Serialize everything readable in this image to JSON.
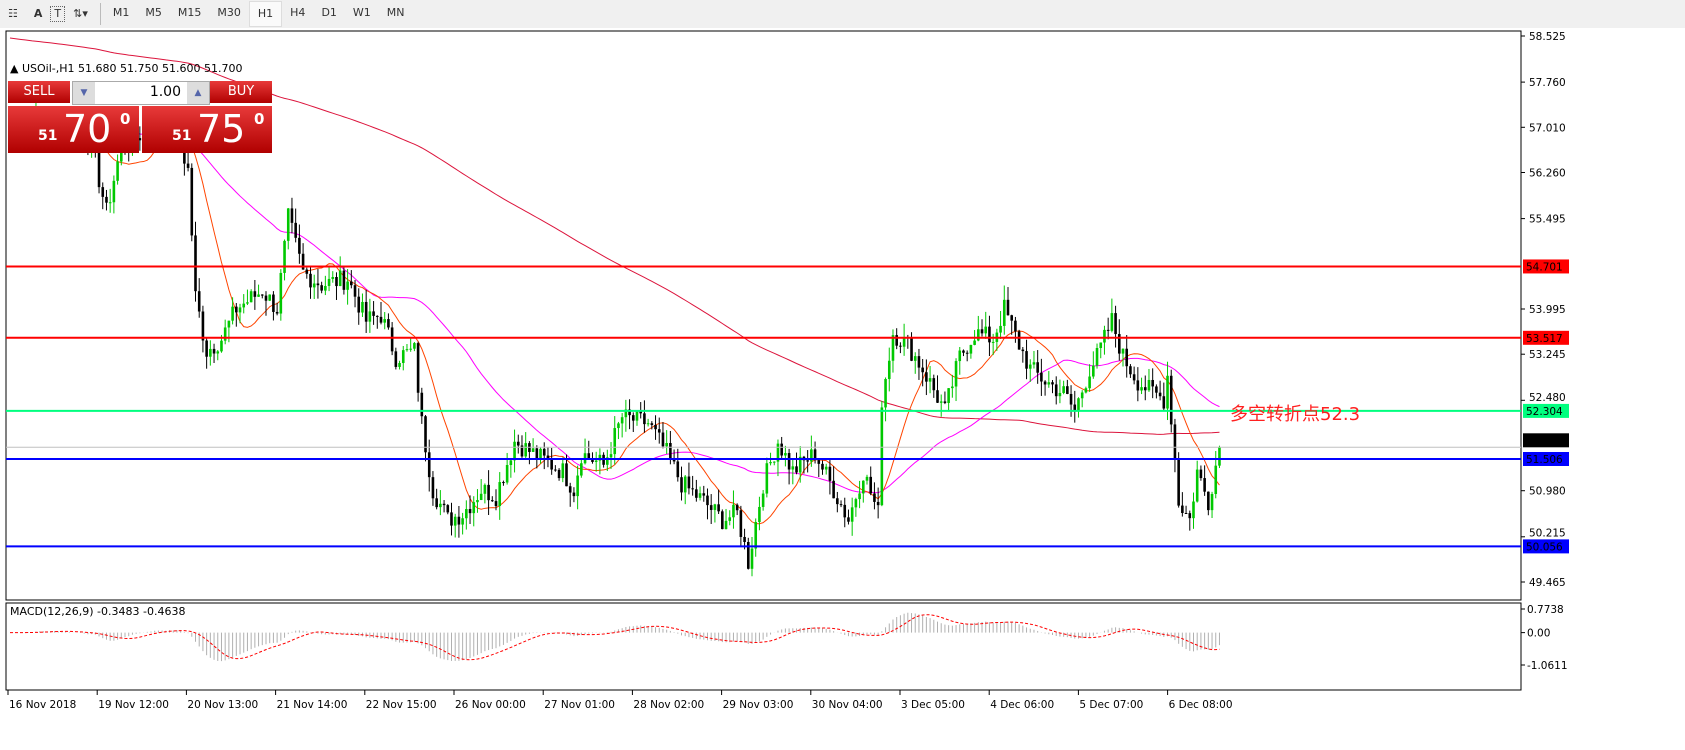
{
  "toolbar": {
    "tools": [
      "A",
      "T"
    ],
    "timeframes": [
      "M1",
      "M5",
      "M15",
      "M30",
      "H1",
      "H4",
      "D1",
      "W1",
      "MN"
    ],
    "active": "H1"
  },
  "chart": {
    "title": "USOil-,H1  51.680 51.750 51.600 51.700",
    "annotation": "多空转折点52.3",
    "macd_label": "MACD(12,26,9) -0.3483 -0.4638"
  },
  "trade": {
    "sell_label": "SELL",
    "buy_label": "BUY",
    "volume": "1.00",
    "sell_big": "51",
    "sell_price": "70",
    "sell_sup": "0",
    "buy_big": "51",
    "buy_price": "75",
    "buy_sup": "0"
  },
  "colors": {
    "up": "#00c800",
    "down": "#000000",
    "resistance": "#ff0000",
    "pivot": "#00ff7f",
    "support": "#0000ff",
    "ma_fast": "#ff4500",
    "ma_mid": "#ff00ff",
    "ma_slow": "#dc143c"
  },
  "chart_data": {
    "type": "candlestick",
    "symbol": "USOil-",
    "timeframe": "H1",
    "ylim": [
      49.465,
      58.525
    ],
    "price_ticks": [
      "58.525",
      "57.760",
      "57.010",
      "56.260",
      "55.495",
      "53.995",
      "53.245",
      "52.480",
      "50.980",
      "50.215",
      "49.465"
    ],
    "time_ticks": [
      "16 Nov 2018",
      "19 Nov 12:00",
      "20 Nov 13:00",
      "21 Nov 14:00",
      "22 Nov 15:00",
      "26 Nov 00:00",
      "27 Nov 01:00",
      "28 Nov 02:00",
      "29 Nov 03:00",
      "30 Nov 04:00",
      "3 Dec 05:00",
      "4 Dec 06:00",
      "5 Dec 07:00",
      "6 Dec 08:00"
    ],
    "hlines": [
      {
        "value": 54.701,
        "label": "54.701",
        "color": "#ff0000"
      },
      {
        "value": 53.517,
        "label": "53.517",
        "color": "#ff0000"
      },
      {
        "value": 52.304,
        "label": "52.304",
        "color": "#00ff7f"
      },
      {
        "value": 51.506,
        "label": "51.506",
        "color": "#0000ff"
      },
      {
        "value": 50.056,
        "label": "50.056",
        "color": "#0000ff"
      }
    ],
    "last_price": {
      "value": 51.7,
      "label": "51.700"
    },
    "close_keypoints": [
      [
        0,
        56.9
      ],
      [
        8,
        57.1
      ],
      [
        15,
        57.0
      ],
      [
        22,
        56.7
      ],
      [
        26,
        55.6
      ],
      [
        30,
        56.7
      ],
      [
        38,
        57.0
      ],
      [
        45,
        56.9
      ],
      [
        48,
        56.3
      ],
      [
        50,
        54.2
      ],
      [
        53,
        53.3
      ],
      [
        57,
        53.5
      ],
      [
        61,
        54.0
      ],
      [
        68,
        54.3
      ],
      [
        72,
        54.0
      ],
      [
        75,
        55.5
      ],
      [
        79,
        54.6
      ],
      [
        84,
        54.4
      ],
      [
        91,
        54.5
      ],
      [
        96,
        53.8
      ],
      [
        100,
        53.9
      ],
      [
        104,
        53.2
      ],
      [
        109,
        53.3
      ],
      [
        111,
        52.1
      ],
      [
        114,
        51.0
      ],
      [
        118,
        50.5
      ],
      [
        122,
        50.6
      ],
      [
        127,
        51.0
      ],
      [
        131,
        50.9
      ],
      [
        136,
        51.8
      ],
      [
        141,
        51.6
      ],
      [
        149,
        51.3
      ],
      [
        152,
        51.0
      ],
      [
        154,
        51.6
      ],
      [
        160,
        51.4
      ],
      [
        165,
        52.2
      ],
      [
        172,
        52.1
      ],
      [
        177,
        51.6
      ],
      [
        181,
        51.1
      ],
      [
        187,
        50.8
      ],
      [
        192,
        50.5
      ],
      [
        196,
        50.6
      ],
      [
        199,
        49.8
      ],
      [
        203,
        51.1
      ],
      [
        207,
        51.8
      ],
      [
        211,
        51.3
      ],
      [
        217,
        51.6
      ],
      [
        222,
        51.0
      ],
      [
        226,
        50.5
      ],
      [
        230,
        51.3
      ],
      [
        234,
        50.6
      ],
      [
        235,
        52.5
      ],
      [
        238,
        53.6
      ],
      [
        242,
        53.4
      ],
      [
        246,
        53.0
      ],
      [
        252,
        52.3
      ],
      [
        256,
        53.2
      ],
      [
        260,
        53.6
      ],
      [
        265,
        53.5
      ],
      [
        268,
        54.0
      ],
      [
        272,
        53.4
      ],
      [
        275,
        53.0
      ],
      [
        279,
        52.8
      ],
      [
        284,
        52.6
      ],
      [
        287,
        52.3
      ],
      [
        291,
        53.0
      ],
      [
        293,
        53.2
      ],
      [
        297,
        53.8
      ],
      [
        300,
        53.2
      ],
      [
        304,
        52.8
      ],
      [
        308,
        52.6
      ],
      [
        311,
        52.5
      ],
      [
        312,
        52.9
      ],
      [
        315,
        50.8
      ],
      [
        318,
        50.5
      ],
      [
        320,
        51.3
      ],
      [
        323,
        50.8
      ],
      [
        326,
        51.7
      ]
    ],
    "macd": {
      "params": "12,26,9",
      "main": -0.3483,
      "signal": -0.4638,
      "ylim": [
        -1.0611,
        0.7738
      ],
      "ticks": [
        "0.7738",
        "0.00",
        "-1.0611"
      ]
    }
  }
}
